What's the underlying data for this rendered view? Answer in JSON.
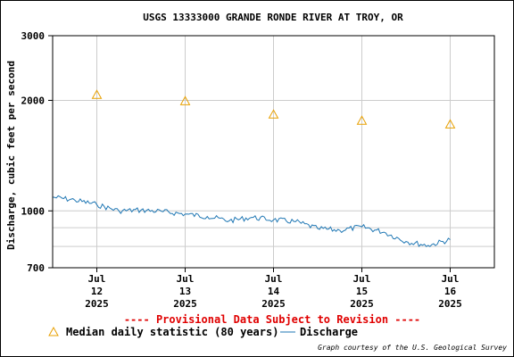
{
  "chart_data": {
    "type": "line",
    "title": "USGS 13333000 GRANDE RONDE RIVER AT TROY, OR",
    "ylabel": "Discharge, cubic feet per second",
    "xlabel": "",
    "y_scale": "log",
    "ylim": [
      700,
      3000
    ],
    "y_ticks": [
      700,
      1000,
      2000,
      3000
    ],
    "y_tick_labels": [
      "700",
      "1000",
      "2000",
      "3000"
    ],
    "y_minor_gridlines": [
      800,
      900
    ],
    "xlim": [
      "2025-07-11 12:00",
      "2025-07-16 12:00"
    ],
    "x_ticks": [
      {
        "date": "2025-07-12 00:00",
        "line1": "Jul",
        "line2": "12",
        "line3": "2025"
      },
      {
        "date": "2025-07-13 00:00",
        "line1": "Jul",
        "line2": "13",
        "line3": "2025"
      },
      {
        "date": "2025-07-14 00:00",
        "line1": "Jul",
        "line2": "14",
        "line3": "2025"
      },
      {
        "date": "2025-07-15 00:00",
        "line1": "Jul",
        "line2": "15",
        "line3": "2025"
      },
      {
        "date": "2025-07-16 00:00",
        "line1": "Jul",
        "line2": "16",
        "line3": "2025"
      }
    ],
    "grid": true,
    "series": [
      {
        "name": "Median daily statistic (80 years)",
        "kind": "triangle-markers",
        "color": "#e8a000",
        "points": [
          {
            "x": "2025-07-12 00:00",
            "y": 2070
          },
          {
            "x": "2025-07-13 00:00",
            "y": 1990
          },
          {
            "x": "2025-07-14 00:00",
            "y": 1830
          },
          {
            "x": "2025-07-15 00:00",
            "y": 1760
          },
          {
            "x": "2025-07-16 00:00",
            "y": 1720
          }
        ]
      },
      {
        "name": "Discharge",
        "kind": "line",
        "color": "#1f77b4",
        "points": [
          {
            "x": "2025-07-11 12:00",
            "y": 1090
          },
          {
            "x": "2025-07-11 18:00",
            "y": 1070
          },
          {
            "x": "2025-07-12 00:00",
            "y": 1040
          },
          {
            "x": "2025-07-12 06:00",
            "y": 1000
          },
          {
            "x": "2025-07-12 12:00",
            "y": 1005
          },
          {
            "x": "2025-07-12 18:00",
            "y": 995
          },
          {
            "x": "2025-07-13 00:00",
            "y": 980
          },
          {
            "x": "2025-07-13 06:00",
            "y": 965
          },
          {
            "x": "2025-07-13 12:00",
            "y": 940
          },
          {
            "x": "2025-07-13 18:00",
            "y": 960
          },
          {
            "x": "2025-07-14 00:00",
            "y": 945
          },
          {
            "x": "2025-07-14 06:00",
            "y": 935
          },
          {
            "x": "2025-07-14 12:00",
            "y": 895
          },
          {
            "x": "2025-07-14 18:00",
            "y": 885
          },
          {
            "x": "2025-07-15 00:00",
            "y": 905
          },
          {
            "x": "2025-07-15 06:00",
            "y": 875
          },
          {
            "x": "2025-07-15 12:00",
            "y": 825
          },
          {
            "x": "2025-07-15 18:00",
            "y": 805
          },
          {
            "x": "2025-07-16 00:00",
            "y": 835
          }
        ]
      }
    ]
  },
  "provisional_note": "---- Provisional Data Subject to Revision ----",
  "legend": {
    "median_label": "Median daily statistic (80 years)",
    "discharge_label": "Discharge"
  },
  "credit": "Graph courtesy of the U.S. Geological Survey"
}
